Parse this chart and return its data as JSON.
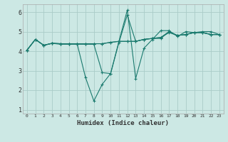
{
  "xlabel": "Humidex (Indice chaleur)",
  "bg_color": "#cce8e4",
  "grid_color": "#aaccc8",
  "line_color": "#1a7a6e",
  "xlim": [
    -0.5,
    23.5
  ],
  "ylim": [
    0.8,
    6.4
  ],
  "yticks": [
    1,
    2,
    3,
    4,
    5,
    6
  ],
  "xtick_labels": [
    "0",
    "1",
    "2",
    "3",
    "4",
    "5",
    "6",
    "7",
    "8",
    "9",
    "10",
    "11",
    "12",
    "13",
    "14",
    "15",
    "16",
    "17",
    "18",
    "19",
    "20",
    "21",
    "22",
    "23"
  ],
  "series": [
    [
      4.05,
      4.6,
      4.3,
      4.4,
      4.35,
      4.35,
      4.35,
      4.35,
      4.35,
      2.9,
      2.85,
      4.45,
      5.85,
      4.5,
      4.6,
      4.65,
      4.65,
      5.0,
      4.8,
      4.85,
      4.95,
      4.95,
      4.85,
      4.85
    ],
    [
      4.05,
      4.6,
      4.3,
      4.4,
      4.38,
      4.38,
      4.38,
      2.65,
      1.45,
      2.3,
      2.85,
      4.5,
      6.1,
      2.6,
      4.15,
      4.6,
      5.05,
      5.05,
      4.75,
      5.0,
      4.95,
      5.0,
      5.0,
      4.85
    ],
    [
      4.05,
      4.6,
      4.3,
      4.4,
      4.38,
      4.38,
      4.38,
      4.38,
      4.38,
      4.38,
      4.45,
      4.5,
      4.5,
      4.5,
      4.6,
      4.65,
      4.7,
      5.0,
      4.8,
      4.85,
      4.95,
      4.95,
      4.85,
      4.85
    ],
    [
      4.05,
      4.6,
      4.3,
      4.4,
      4.38,
      4.38,
      4.38,
      4.38,
      4.38,
      4.38,
      4.45,
      4.5,
      4.5,
      4.5,
      4.6,
      4.65,
      4.7,
      4.95,
      4.8,
      4.85,
      4.95,
      4.95,
      4.85,
      4.85
    ]
  ]
}
